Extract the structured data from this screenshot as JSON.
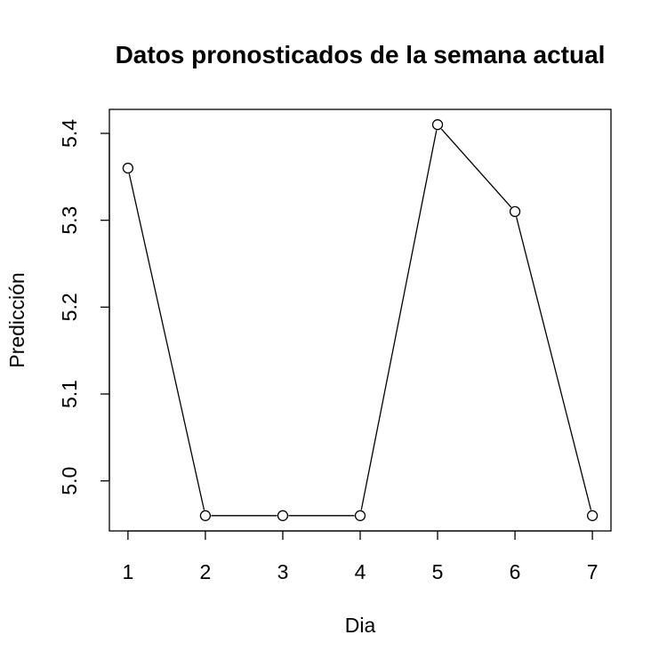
{
  "chart_data": {
    "type": "line",
    "title": "Datos pronosticados de la semana actual",
    "xlabel": "Dia",
    "ylabel": "Predicción",
    "x": [
      1,
      2,
      3,
      4,
      5,
      6,
      7
    ],
    "values": [
      5.36,
      4.96,
      4.96,
      4.96,
      5.41,
      5.31,
      4.96
    ],
    "xticks": [
      1,
      2,
      3,
      4,
      5,
      6,
      7
    ],
    "xtick_labels": [
      "1",
      "2",
      "3",
      "4",
      "5",
      "6",
      "7"
    ],
    "yticks": [
      5.0,
      5.1,
      5.2,
      5.3,
      5.4
    ],
    "ytick_labels": [
      "5.0",
      "5.1",
      "5.2",
      "5.3",
      "5.4"
    ],
    "xlim": [
      0.76,
      7.24
    ],
    "ylim": [
      4.9424,
      5.4276
    ],
    "markers": "open-circle",
    "line_color": "#000000",
    "grid": false,
    "legend": false
  }
}
